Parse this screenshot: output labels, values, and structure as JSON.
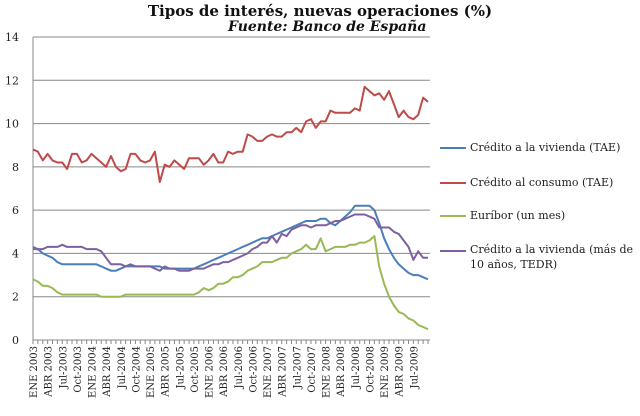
{
  "chart_data": {
    "type": "line",
    "title": "Tipos de interés, nuevas operaciones (%)",
    "subtitle": "Fuente: Banco de España",
    "ylim": [
      0,
      14
    ],
    "y_ticks": [
      "0",
      "2",
      "4",
      "6",
      "8",
      "10",
      "12",
      "14"
    ],
    "grid": true,
    "legend": "right",
    "x_range": "ENE 2003 - Oct 2009 (monthly)",
    "x_tick_labels": [
      "ENE 2003",
      "ABR 2003",
      "Jul-2003",
      "Oct-2003",
      "ENE 2004",
      "ABR 2004",
      "Jul-2004",
      "Oct-2004",
      "ENE 2005",
      "ABR 2005",
      "Jul-2005",
      "Oct-2005",
      "ENE 2006",
      "ABR 2006",
      "Jul-2006",
      "Oct-2006",
      "ENE 2007",
      "ABR 2007",
      "Jul-2007",
      "Oct-2007",
      "ENE 2008",
      "ABR 2008",
      "Jul-2008",
      "Oct-2008",
      "ENE 2009",
      "ABR 2009",
      "Jul-2009"
    ],
    "series": [
      {
        "name": "Crédito a la vivienda (TAE)",
        "color": "#4a7ebb",
        "values": [
          4.3,
          4.2,
          4.0,
          3.9,
          3.8,
          3.6,
          3.5,
          3.5,
          3.5,
          3.5,
          3.5,
          3.5,
          3.5,
          3.5,
          3.4,
          3.3,
          3.2,
          3.2,
          3.3,
          3.4,
          3.4,
          3.4,
          3.4,
          3.4,
          3.4,
          3.4,
          3.4,
          3.3,
          3.3,
          3.3,
          3.3,
          3.3,
          3.3,
          3.3,
          3.4,
          3.5,
          3.6,
          3.7,
          3.8,
          3.9,
          4.0,
          4.1,
          4.2,
          4.3,
          4.4,
          4.5,
          4.6,
          4.7,
          4.7,
          4.8,
          4.9,
          5.0,
          5.1,
          5.2,
          5.3,
          5.4,
          5.5,
          5.5,
          5.5,
          5.6,
          5.6,
          5.4,
          5.3,
          5.5,
          5.7,
          5.9,
          6.2,
          6.2,
          6.2,
          6.2,
          6.0,
          5.4,
          4.7,
          4.2,
          3.8,
          3.5,
          3.3,
          3.1,
          3.0,
          3.0,
          2.9,
          2.8
        ]
      },
      {
        "name": "Crédito al consumo (TAE)",
        "color": "#be4b48",
        "values": [
          8.8,
          8.7,
          8.3,
          8.6,
          8.3,
          8.2,
          8.2,
          7.9,
          8.6,
          8.6,
          8.2,
          8.3,
          8.6,
          8.4,
          8.2,
          8.0,
          8.5,
          8.0,
          7.8,
          7.9,
          8.6,
          8.6,
          8.3,
          8.2,
          8.3,
          8.7,
          7.3,
          8.1,
          8.0,
          8.3,
          8.1,
          7.9,
          8.4,
          8.4,
          8.4,
          8.1,
          8.3,
          8.6,
          8.2,
          8.2,
          8.7,
          8.6,
          8.7,
          8.7,
          9.5,
          9.4,
          9.2,
          9.2,
          9.4,
          9.5,
          9.4,
          9.4,
          9.6,
          9.6,
          9.8,
          9.6,
          10.1,
          10.2,
          9.8,
          10.1,
          10.1,
          10.6,
          10.5,
          10.5,
          10.5,
          10.5,
          10.7,
          10.6,
          11.7,
          11.5,
          11.3,
          11.4,
          11.1,
          11.5,
          10.9,
          10.3,
          10.6,
          10.3,
          10.2,
          10.4,
          11.2,
          11.0
        ]
      },
      {
        "name": "Euríbor (un mes)",
        "color": "#98b954",
        "values": [
          2.8,
          2.7,
          2.5,
          2.5,
          2.4,
          2.2,
          2.1,
          2.1,
          2.1,
          2.1,
          2.1,
          2.1,
          2.1,
          2.1,
          2.0,
          2.0,
          2.0,
          2.0,
          2.0,
          2.1,
          2.1,
          2.1,
          2.1,
          2.1,
          2.1,
          2.1,
          2.1,
          2.1,
          2.1,
          2.1,
          2.1,
          2.1,
          2.1,
          2.1,
          2.2,
          2.4,
          2.3,
          2.4,
          2.6,
          2.6,
          2.7,
          2.9,
          2.9,
          3.0,
          3.2,
          3.3,
          3.4,
          3.6,
          3.6,
          3.6,
          3.7,
          3.8,
          3.8,
          4.0,
          4.1,
          4.2,
          4.4,
          4.2,
          4.2,
          4.7,
          4.1,
          4.2,
          4.3,
          4.3,
          4.3,
          4.4,
          4.4,
          4.5,
          4.5,
          4.6,
          4.8,
          3.4,
          2.6,
          2.0,
          1.6,
          1.3,
          1.2,
          1.0,
          0.9,
          0.7,
          0.6,
          0.5
        ]
      },
      {
        "name": "Crédito a la vivienda (más de 10 años, TEDR)",
        "color": "#7d60a0",
        "values": [
          4.2,
          4.2,
          4.2,
          4.3,
          4.3,
          4.3,
          4.4,
          4.3,
          4.3,
          4.3,
          4.3,
          4.2,
          4.2,
          4.2,
          4.1,
          3.8,
          3.5,
          3.5,
          3.5,
          3.4,
          3.5,
          3.4,
          3.4,
          3.4,
          3.4,
          3.3,
          3.2,
          3.4,
          3.3,
          3.3,
          3.2,
          3.2,
          3.2,
          3.3,
          3.3,
          3.3,
          3.4,
          3.5,
          3.5,
          3.6,
          3.6,
          3.7,
          3.8,
          3.9,
          4.0,
          4.2,
          4.3,
          4.5,
          4.5,
          4.8,
          4.5,
          4.9,
          4.8,
          5.1,
          5.2,
          5.3,
          5.3,
          5.2,
          5.3,
          5.3,
          5.3,
          5.4,
          5.5,
          5.5,
          5.6,
          5.7,
          5.8,
          5.8,
          5.8,
          5.7,
          5.6,
          5.2,
          5.2,
          5.2,
          5.0,
          4.9,
          4.6,
          4.3,
          3.7,
          4.1,
          3.8,
          3.8
        ]
      }
    ]
  }
}
